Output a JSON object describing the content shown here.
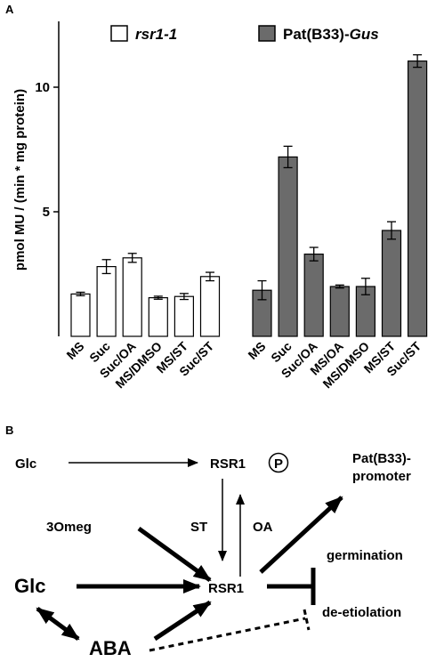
{
  "panel_a_letter": "A",
  "panel_b_letter": "B",
  "chart_data": {
    "type": "bar",
    "ylabel": "pmol MU / (min * mg protein)",
    "ylim": [
      0,
      12
    ],
    "yticks": [
      5,
      10
    ],
    "grid": false,
    "legend_placement": "top",
    "groups": [
      {
        "legend_label": "rsr1-1",
        "legend_label_style": "italic",
        "fill": "#ffffff",
        "categories": [
          "MS",
          "Suc",
          "Suc/OA",
          "MS/DMSO",
          "MS/ST",
          "Suc/ST"
        ],
        "values": [
          1.7,
          2.8,
          3.15,
          1.55,
          1.6,
          2.4
        ],
        "errors": [
          0.07,
          0.28,
          0.18,
          0.06,
          0.12,
          0.17
        ]
      },
      {
        "legend_label_prefix": "Pat(B33)-",
        "legend_label_suffix": "Gus",
        "fill": "#6b6b6b",
        "categories": [
          "MS",
          "Suc",
          "Suc/OA",
          "MS/OA",
          "MS/DMSO",
          "MS/ST",
          "Suc/ST"
        ],
        "values": [
          1.85,
          7.2,
          3.3,
          2.0,
          2.0,
          4.25,
          11.05
        ],
        "errors": [
          0.38,
          0.43,
          0.27,
          0.06,
          0.33,
          0.35,
          0.25
        ]
      }
    ]
  },
  "diagram": {
    "glc_top": "Glc",
    "rsr1_top": "RSR1",
    "p_circle": "P",
    "pat_promoter_line1": "Pat(B33)-",
    "pat_promoter_line2": "promoter",
    "omeg": "3Omeg",
    "st": "ST",
    "oa": "OA",
    "germination": "germination",
    "glc_left": "Glc",
    "rsr1_center": "RSR1",
    "de_etiolation": "de-etiolation",
    "aba": "ABA"
  }
}
